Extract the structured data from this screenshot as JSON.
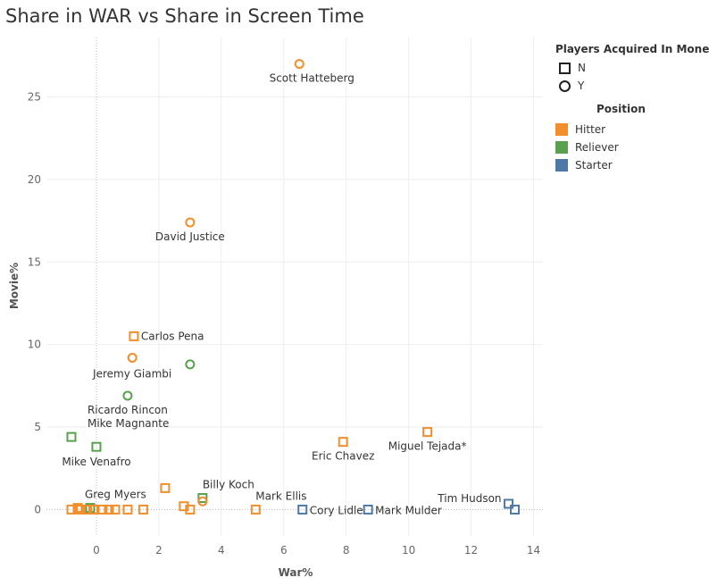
{
  "title": "Share in WAR vs Share in Screen Time",
  "legend": {
    "acquired_title": "Players Acquired In Moneyball",
    "acquired_items": [
      {
        "label": "N",
        "shape": "square"
      },
      {
        "label": "Y",
        "shape": "circle"
      }
    ],
    "position_title": "Position",
    "position_items": [
      {
        "label": "Hitter",
        "color": "#F28E2B"
      },
      {
        "label": "Reliever",
        "color": "#59A14F"
      },
      {
        "label": "Starter",
        "color": "#4E79A7"
      }
    ]
  },
  "chart_data": {
    "type": "scatter",
    "title": "Share in WAR vs Share in Screen Time",
    "xlabel": "War%",
    "ylabel": "Movie%",
    "xlim": [
      -1.6,
      14.3
    ],
    "ylim": [
      -1.6,
      28.6
    ],
    "xticks": [
      0,
      2,
      4,
      6,
      8,
      10,
      12,
      14
    ],
    "yticks": [
      0,
      5,
      10,
      15,
      20,
      25
    ],
    "grid": true,
    "legend_position": "right",
    "points": [
      {
        "x": 6.5,
        "y": 27.0,
        "position": "Hitter",
        "acquired": "Y",
        "label": "Scott Hatteberg"
      },
      {
        "x": 3.0,
        "y": 17.4,
        "position": "Hitter",
        "acquired": "Y",
        "label": "David Justice"
      },
      {
        "x": 1.2,
        "y": 10.5,
        "position": "Hitter",
        "acquired": "N",
        "label": "Carlos Pena"
      },
      {
        "x": 1.15,
        "y": 9.2,
        "position": "Hitter",
        "acquired": "Y",
        "label": "Jeremy Giambi"
      },
      {
        "x": 3.0,
        "y": 8.8,
        "position": "Reliever",
        "acquired": "Y",
        "label": ""
      },
      {
        "x": 1.0,
        "y": 6.9,
        "position": "Reliever",
        "acquired": "Y",
        "label": "Ricardo Rincon"
      },
      {
        "x": -0.8,
        "y": 4.4,
        "position": "Reliever",
        "acquired": "N",
        "label": "Mike Magnante"
      },
      {
        "x": 0.0,
        "y": 3.8,
        "position": "Reliever",
        "acquired": "N",
        "label": "Mike Venafro"
      },
      {
        "x": 7.9,
        "y": 4.1,
        "position": "Hitter",
        "acquired": "N",
        "label": "Eric Chavez"
      },
      {
        "x": 10.6,
        "y": 4.7,
        "position": "Hitter",
        "acquired": "N",
        "label": "Miguel Tejada*"
      },
      {
        "x": 2.2,
        "y": 1.3,
        "position": "Hitter",
        "acquired": "N",
        "label": ""
      },
      {
        "x": 3.4,
        "y": 0.7,
        "position": "Reliever",
        "acquired": "N",
        "label": "Billy Koch"
      },
      {
        "x": 3.4,
        "y": 0.5,
        "position": "Hitter",
        "acquired": "Y",
        "label": ""
      },
      {
        "x": 2.8,
        "y": 0.2,
        "position": "Hitter",
        "acquired": "N",
        "label": ""
      },
      {
        "x": 3.0,
        "y": 0.0,
        "position": "Hitter",
        "acquired": "N",
        "label": ""
      },
      {
        "x": 5.1,
        "y": 0.0,
        "position": "Hitter",
        "acquired": "N",
        "label": "Mark Ellis"
      },
      {
        "x": 6.6,
        "y": 0.0,
        "position": "Starter",
        "acquired": "N",
        "label": "Cory Lidle"
      },
      {
        "x": 8.7,
        "y": 0.0,
        "position": "Starter",
        "acquired": "N",
        "label": "Mark Mulder"
      },
      {
        "x": 13.2,
        "y": 0.35,
        "position": "Starter",
        "acquired": "N",
        "label": "Tim Hudson"
      },
      {
        "x": 13.4,
        "y": 0.0,
        "position": "Starter",
        "acquired": "N",
        "label": ""
      },
      {
        "x": -0.2,
        "y": 0.1,
        "position": "Reliever",
        "acquired": "N",
        "label": "Greg Myers"
      },
      {
        "x": -0.8,
        "y": 0.0,
        "position": "Hitter",
        "acquired": "N",
        "label": ""
      },
      {
        "x": -0.6,
        "y": 0.1,
        "position": "Hitter",
        "acquired": "N",
        "label": ""
      },
      {
        "x": -0.5,
        "y": 0.0,
        "position": "Hitter",
        "acquired": "N",
        "label": ""
      },
      {
        "x": -0.3,
        "y": 0.0,
        "position": "Hitter",
        "acquired": "N",
        "label": ""
      },
      {
        "x": -0.1,
        "y": 0.0,
        "position": "Hitter",
        "acquired": "N",
        "label": ""
      },
      {
        "x": 0.2,
        "y": 0.0,
        "position": "Hitter",
        "acquired": "N",
        "label": ""
      },
      {
        "x": 0.4,
        "y": 0.0,
        "position": "Hitter",
        "acquired": "N",
        "label": ""
      },
      {
        "x": 0.6,
        "y": 0.0,
        "position": "Hitter",
        "acquired": "N",
        "label": ""
      },
      {
        "x": 1.0,
        "y": 0.0,
        "position": "Hitter",
        "acquired": "N",
        "label": ""
      },
      {
        "x": 1.5,
        "y": 0.0,
        "position": "Hitter",
        "acquired": "N",
        "label": ""
      }
    ]
  }
}
